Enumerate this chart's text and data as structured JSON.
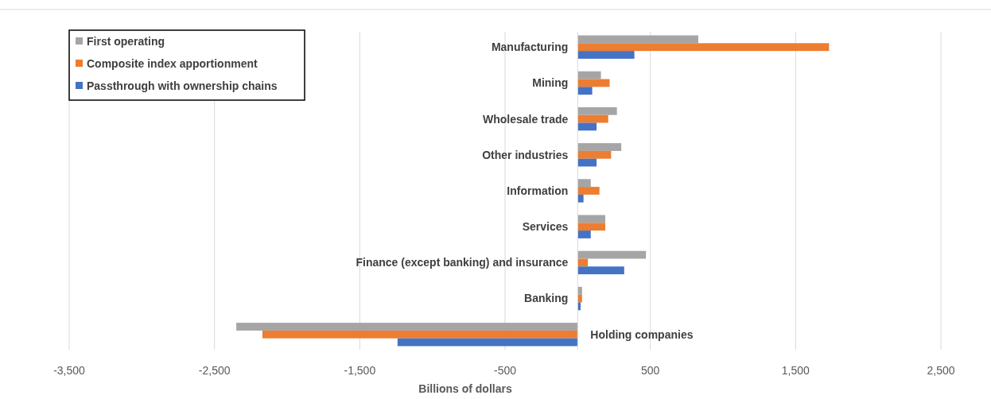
{
  "chart_data": {
    "type": "bar",
    "orientation": "horizontal",
    "xlabel": "Billions of dollars",
    "categories": [
      "Manufacturing",
      "Mining",
      "Wholesale trade",
      "Other industries",
      "Information",
      "Services",
      "Finance (except banking) and insurance",
      "Banking",
      "Holding companies"
    ],
    "series": [
      {
        "name": "First operating",
        "color": "#a5a5a5",
        "values": [
          830,
          160,
          270,
          300,
          90,
          190,
          470,
          30,
          -2350
        ]
      },
      {
        "name": "Composite index apportionment",
        "color": "#ed7d31",
        "values": [
          1730,
          220,
          210,
          230,
          150,
          190,
          70,
          30,
          -2170
        ]
      },
      {
        "name": "Passthrough with ownership chains",
        "color": "#4472c4",
        "values": [
          390,
          100,
          130,
          130,
          40,
          90,
          320,
          20,
          -1240
        ]
      }
    ],
    "xlim": [
      -3500,
      2500
    ],
    "xticks": [
      {
        "value": -3500,
        "label": "-3,500"
      },
      {
        "value": -2500,
        "label": "-2,500"
      },
      {
        "value": -1500,
        "label": "-1,500"
      },
      -500,
      500,
      {
        "value": 1500,
        "label": "1,500"
      },
      {
        "value": 2500,
        "label": "2,500"
      }
    ],
    "grid": "x",
    "legend": "top left"
  }
}
